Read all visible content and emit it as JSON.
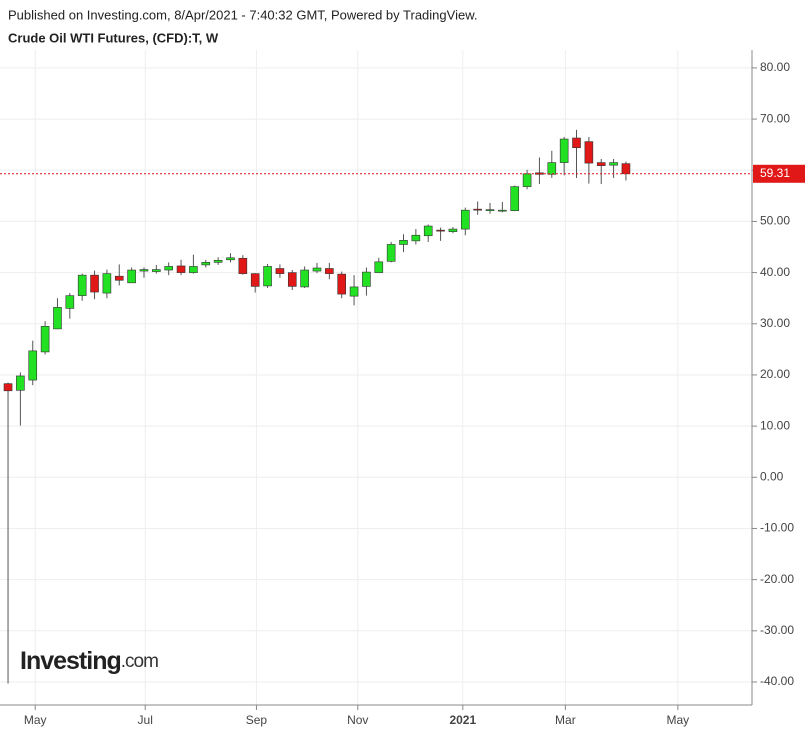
{
  "chart_data": {
    "type": "candlestick",
    "published": "Published on Investing.com, 8/Apr/2021 - 7:40:32 GMT, Powered by TradingView.",
    "title": "Crude Oil WTI Futures, (CFD):T, W",
    "logo": {
      "main": "Investing",
      "suffix": ".com"
    },
    "up_color": "#22e022",
    "down_color": "#e01818",
    "open": [
      18.3,
      17.0,
      19.0,
      24.5,
      29.0,
      33.0,
      35.5,
      39.5,
      36.0,
      39.3,
      38.0,
      40.3,
      40.2,
      40.5,
      41.3,
      40.0,
      41.5,
      42.0,
      42.5,
      42.8,
      39.8,
      37.4,
      40.8,
      40.0,
      37.2,
      40.3,
      40.8,
      39.7,
      35.4,
      37.3,
      40.0,
      42.2,
      45.5,
      46.2,
      47.2,
      48.3,
      48.0,
      48.5,
      52.4,
      52.1,
      52.1,
      52.1,
      56.8,
      59.5,
      59.2,
      61.5,
      66.3,
      65.6,
      61.5,
      61.0,
      61.3
    ],
    "high": [
      18.5,
      20.5,
      26.7,
      30.5,
      35.0,
      36.0,
      39.8,
      40.4,
      40.6,
      41.6,
      41.0,
      41.0,
      41.5,
      42.0,
      42.5,
      43.5,
      42.5,
      43.0,
      43.8,
      43.4,
      39.9,
      41.7,
      41.6,
      40.5,
      41.2,
      41.9,
      41.9,
      40.2,
      39.5,
      41.0,
      42.9,
      46.0,
      47.5,
      48.5,
      49.4,
      48.8,
      48.9,
      52.7,
      53.9,
      53.6,
      53.8,
      57.0,
      60.1,
      62.5,
      63.8,
      66.5,
      67.9,
      66.5,
      62.2,
      62.2,
      61.7
    ],
    "low": [
      -40.3,
      10.1,
      18.0,
      24.0,
      29.0,
      31.0,
      34.5,
      34.8,
      35.0,
      37.5,
      38.0,
      39.0,
      39.8,
      39.5,
      39.5,
      39.8,
      41.0,
      41.5,
      42.0,
      39.6,
      36.1,
      37.0,
      39.0,
      36.6,
      37.0,
      39.9,
      38.7,
      35.0,
      33.6,
      35.5,
      40.0,
      42.0,
      44.0,
      45.5,
      46.0,
      46.2,
      47.7,
      47.3,
      51.3,
      51.5,
      51.8,
      52.0,
      56.3,
      57.3,
      58.5,
      59.0,
      58.5,
      57.4,
      57.3,
      58.5,
      58.0
    ],
    "close": [
      16.9,
      19.8,
      24.7,
      29.5,
      33.2,
      35.5,
      39.5,
      36.2,
      39.8,
      38.5,
      40.5,
      40.6,
      40.6,
      41.2,
      40.0,
      41.2,
      42.0,
      42.4,
      42.9,
      39.8,
      37.3,
      41.2,
      39.8,
      37.3,
      40.5,
      40.9,
      39.8,
      35.8,
      37.2,
      40.1,
      42.1,
      45.5,
      46.3,
      47.3,
      49.1,
      48.2,
      48.5,
      52.2,
      52.2,
      52.3,
      52.2,
      56.8,
      59.3,
      59.2,
      61.5,
      66.1,
      64.4,
      61.4,
      60.9,
      61.5,
      59.31
    ],
    "last_price": 59.31,
    "xlim": [
      -0.65,
      60.2
    ],
    "xticks": [
      {
        "value": 2.2,
        "label": "May"
      },
      {
        "value": 11.1,
        "label": "Jul"
      },
      {
        "value": 20.1,
        "label": "Sep"
      },
      {
        "value": 28.3,
        "label": "Nov"
      },
      {
        "value": 36.8,
        "label": "2021"
      },
      {
        "value": 45.1,
        "label": "Mar"
      },
      {
        "value": 54.2,
        "label": "May"
      }
    ],
    "ylim": [
      -44.5,
      83.5
    ],
    "yticks": [
      {
        "value": 80,
        "label": "80.00"
      },
      {
        "value": 70,
        "label": "70.00"
      },
      {
        "value": 60,
        "label": "60.00"
      },
      {
        "value": 50,
        "label": "50.00"
      },
      {
        "value": 40,
        "label": "40.00"
      },
      {
        "value": 30,
        "label": "30.00"
      },
      {
        "value": 20,
        "label": "20.00"
      },
      {
        "value": 10,
        "label": "10.00"
      },
      {
        "value": 0,
        "label": "0.00"
      },
      {
        "value": -10,
        "label": "-10.00"
      },
      {
        "value": -20,
        "label": "-20.00"
      },
      {
        "value": -30,
        "label": "-30.00"
      },
      {
        "value": -40,
        "label": "-40.00"
      }
    ],
    "grid": true
  }
}
